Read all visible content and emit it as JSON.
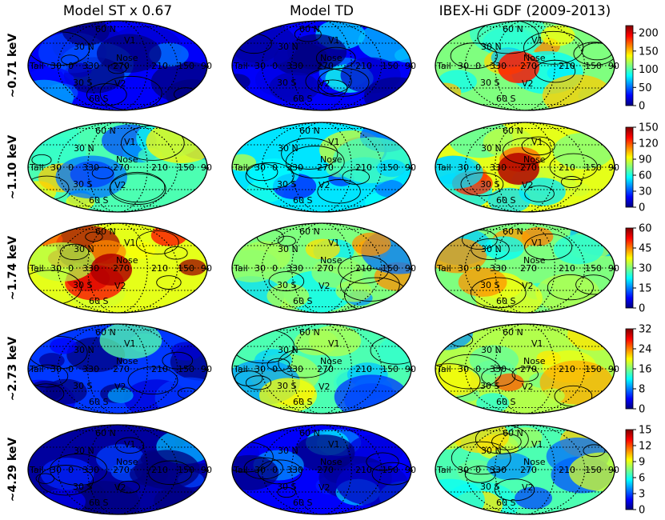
{
  "chart_data": {
    "type": "heatmap",
    "projection": "mollweide",
    "columns": [
      {
        "title": "Model ST x 0.67"
      },
      {
        "title": "Model TD"
      },
      {
        "title": "IBEX-Hi GDF (2009-2013)"
      }
    ],
    "rows": [
      {
        "energy": "~0.71 keV",
        "cbar_ticks": [
          "0",
          "50",
          "100",
          "150",
          "200"
        ],
        "vmax": 220
      },
      {
        "energy": "~1.10 keV",
        "cbar_ticks": [
          "0",
          "30",
          "60",
          "90",
          "120",
          "150"
        ],
        "vmax": 150
      },
      {
        "energy": "~1.74 keV",
        "cbar_ticks": [
          "0",
          "15",
          "30",
          "45",
          "60"
        ],
        "vmax": 60
      },
      {
        "energy": "~2.73 keV",
        "cbar_ticks": [
          "0",
          "8",
          "16",
          "24",
          "32"
        ],
        "vmax": 32
      },
      {
        "energy": "~4.29 keV",
        "cbar_ticks": [
          "0",
          "3",
          "6",
          "9",
          "12",
          "15"
        ],
        "vmax": 15
      }
    ],
    "intensity_level": [
      [
        0.12,
        0.12,
        0.5
      ],
      [
        0.45,
        0.35,
        0.6
      ],
      [
        0.6,
        0.5,
        0.5
      ],
      [
        0.18,
        0.45,
        0.55
      ],
      [
        0.03,
        0.12,
        0.45
      ]
    ],
    "map_labels": {
      "parallels": [
        "60 N",
        "30 N",
        "30 S",
        "60 S"
      ],
      "meridians": [
        "Tail",
        "30",
        "0",
        "330",
        "270",
        "210",
        "150",
        "90"
      ],
      "markers": [
        "V1",
        "Nose",
        "V2"
      ]
    },
    "colormap": [
      "#00007f",
      "#0000ff",
      "#007fff",
      "#00ffff",
      "#7fff7f",
      "#ffff00",
      "#ff7f00",
      "#ff0000",
      "#7f0000"
    ]
  }
}
